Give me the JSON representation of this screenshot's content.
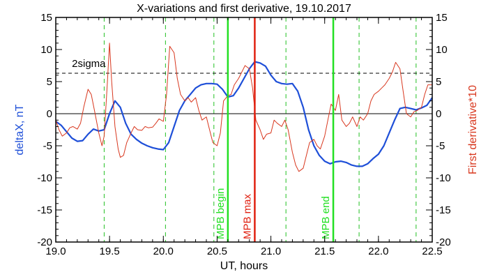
{
  "chart_data": {
    "type": "line",
    "title": "X-variations and first derivative, 19.10.2017",
    "xlabel": "UT, hours",
    "ylabel_left": "deltaX, nT",
    "ylabel_right": "First derivative*10",
    "xlim": [
      19.0,
      22.5
    ],
    "ylim": [
      -20,
      15
    ],
    "x_ticks": [
      "19.0",
      "19.5",
      "20.0",
      "20.5",
      "21.0",
      "21.5",
      "22.0",
      "22.5"
    ],
    "y_ticks": [
      "-20",
      "-15",
      "-10",
      "-5",
      "0",
      "5",
      "10",
      "15"
    ],
    "colors": {
      "deltaX": "#1e4fd8",
      "derivative": "#d8371e",
      "green": "#22e022",
      "red": "#e02010",
      "dashed_green": "#22c022"
    },
    "series": [
      {
        "key": "deltaX",
        "x": [
          19.0,
          19.05,
          19.1,
          19.15,
          19.2,
          19.25,
          19.3,
          19.35,
          19.4,
          19.45,
          19.5,
          19.55,
          19.6,
          19.65,
          19.7,
          19.75,
          19.8,
          19.85,
          19.9,
          19.95,
          20.0,
          20.05,
          20.1,
          20.15,
          20.2,
          20.25,
          20.3,
          20.35,
          20.4,
          20.45,
          20.5,
          20.55,
          20.6,
          20.65,
          20.7,
          20.75,
          20.8,
          20.85,
          20.9,
          20.95,
          21.0,
          21.05,
          21.1,
          21.15,
          21.2,
          21.25,
          21.3,
          21.35,
          21.4,
          21.45,
          21.5,
          21.55,
          21.6,
          21.65,
          21.7,
          21.75,
          21.8,
          21.85,
          21.9,
          21.95,
          22.0,
          22.05,
          22.1,
          22.15,
          22.2,
          22.25,
          22.3,
          22.35,
          22.4,
          22.45,
          22.5
        ],
        "y": [
          -1.2,
          -1.8,
          -2.8,
          -3.8,
          -4.3,
          -4.2,
          -3.2,
          -2.4,
          -2.7,
          -2.5,
          0.0,
          2.0,
          1.0,
          -1.5,
          -3.2,
          -4.0,
          -4.6,
          -5.0,
          -5.3,
          -5.5,
          -5.6,
          -4.5,
          -2.0,
          0.5,
          2.0,
          3.0,
          4.0,
          4.5,
          4.7,
          4.7,
          4.6,
          3.8,
          2.6,
          2.8,
          4.0,
          5.5,
          7.0,
          8.1,
          7.9,
          7.4,
          6.0,
          5.0,
          4.7,
          4.6,
          4.7,
          3.5,
          1.0,
          -2.5,
          -5.0,
          -6.5,
          -7.4,
          -7.8,
          -7.5,
          -7.4,
          -7.6,
          -8.0,
          -8.2,
          -8.2,
          -7.8,
          -7.0,
          -6.3,
          -5.0,
          -3.0,
          -1.0,
          0.8,
          1.0,
          0.8,
          0.6,
          0.9,
          1.3,
          2.5
        ]
      },
      {
        "key": "derivative",
        "x": [
          19.0,
          19.03,
          19.06,
          19.1,
          19.13,
          19.16,
          19.2,
          19.23,
          19.26,
          19.3,
          19.33,
          19.36,
          19.4,
          19.43,
          19.45,
          19.48,
          19.5,
          19.52,
          19.55,
          19.58,
          19.6,
          19.63,
          19.66,
          19.7,
          19.73,
          19.76,
          19.8,
          19.83,
          19.86,
          19.9,
          19.93,
          19.96,
          20.0,
          20.03,
          20.06,
          20.1,
          20.13,
          20.16,
          20.2,
          20.23,
          20.26,
          20.3,
          20.33,
          20.36,
          20.4,
          20.43,
          20.46,
          20.5,
          20.53,
          20.56,
          20.6,
          20.63,
          20.66,
          20.7,
          20.73,
          20.76,
          20.8,
          20.83,
          20.86,
          20.9,
          20.93,
          20.96,
          21.0,
          21.03,
          21.06,
          21.1,
          21.13,
          21.16,
          21.2,
          21.23,
          21.26,
          21.3,
          21.33,
          21.36,
          21.4,
          21.43,
          21.46,
          21.5,
          21.53,
          21.56,
          21.6,
          21.63,
          21.66,
          21.7,
          21.73,
          21.76,
          21.8,
          21.83,
          21.86,
          21.9,
          21.93,
          21.96,
          22.0,
          22.03,
          22.06,
          22.1,
          22.13,
          22.16,
          22.2,
          22.23,
          22.26,
          22.3,
          22.33,
          22.36,
          22.4,
          22.43,
          22.46,
          22.5
        ],
        "y": [
          -1.0,
          -2.5,
          -3.5,
          -3.0,
          -2.2,
          -2.0,
          -2.4,
          -1.5,
          1.0,
          3.8,
          3.0,
          0.5,
          -3.0,
          -5.0,
          -3.5,
          5.0,
          11.0,
          5.0,
          -2.0,
          -5.5,
          -6.8,
          -6.5,
          -4.5,
          -3.0,
          -2.0,
          -2.5,
          -2.6,
          -2.0,
          -2.2,
          -2.1,
          -1.5,
          -0.8,
          -1.2,
          3.0,
          10.5,
          9.5,
          5.5,
          3.0,
          2.0,
          2.5,
          1.8,
          2.5,
          0.5,
          -1.0,
          -0.5,
          -2.5,
          -4.5,
          -5.0,
          -3.0,
          2.0,
          2.8,
          3.0,
          4.5,
          5.5,
          6.5,
          7.5,
          7.0,
          4.0,
          -1.0,
          -2.5,
          -4.0,
          -3.2,
          -3.0,
          -1.0,
          -1.5,
          -2.0,
          -1.0,
          -2.5,
          -6.0,
          -8.0,
          -9.0,
          -8.5,
          -6.5,
          -4.5,
          -4.0,
          -5.0,
          -5.5,
          -3.5,
          -1.0,
          1.5,
          0.5,
          3.0,
          -1.0,
          -2.0,
          -1.5,
          -0.5,
          -2.0,
          -0.5,
          -1.0,
          0.0,
          2.0,
          3.0,
          3.5,
          4.0,
          4.5,
          5.5,
          6.5,
          8.0,
          7.0,
          3.5,
          0.0,
          -0.5,
          0.3,
          0.5,
          1.0,
          3.0,
          4.5,
          4.5
        ]
      }
    ],
    "hlines": [
      {
        "y": 0,
        "style": "solid",
        "color": "#000000"
      },
      {
        "y": 6.3,
        "style": "dashed",
        "color": "#000000",
        "label": "2sigma",
        "label_x": 19.15
      }
    ],
    "vlines_dashed": [
      19.45,
      20.02,
      20.47,
      21.14,
      21.82,
      22.35
    ],
    "vlines_solid": [
      {
        "x": 20.6,
        "color": "#22e022",
        "label": "MPB begin"
      },
      {
        "x": 20.85,
        "color": "#e02010",
        "label": "MPB max"
      },
      {
        "x": 21.58,
        "color": "#22e022",
        "label": "MPB end"
      }
    ],
    "grid": false
  }
}
